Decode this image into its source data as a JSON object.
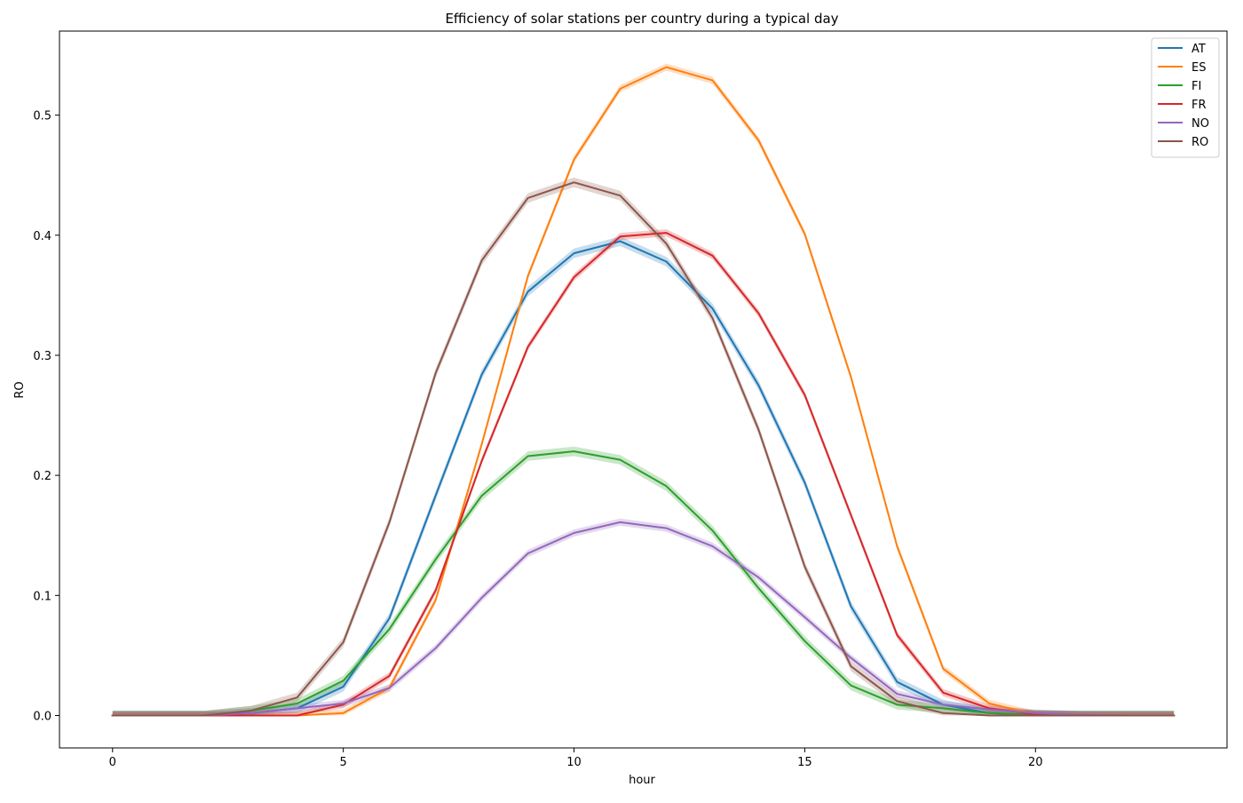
{
  "chart_data": {
    "type": "line",
    "title": "Efficiency of solar stations per country during a typical day",
    "xlabel": "hour",
    "ylabel": "RO",
    "xlim": [
      -1.15,
      24.15
    ],
    "ylim": [
      -0.027,
      0.57
    ],
    "xticks": [
      0,
      5,
      10,
      15,
      20
    ],
    "yticks": [
      0.0,
      0.1,
      0.2,
      0.3,
      0.4,
      0.5
    ],
    "ytick_labels": [
      "0.0",
      "0.1",
      "0.2",
      "0.3",
      "0.4",
      "0.5"
    ],
    "grid": false,
    "legend_position": "top-right",
    "x": [
      0,
      1,
      2,
      3,
      4,
      5,
      6,
      7,
      8,
      9,
      10,
      11,
      12,
      13,
      14,
      15,
      16,
      17,
      18,
      19,
      20,
      21,
      22,
      23
    ],
    "series": [
      {
        "name": "AT",
        "color": "#1f77b4",
        "band": 0.004,
        "values": [
          0,
          0,
          0,
          0.002,
          0.006,
          0.024,
          0.081,
          0.183,
          0.284,
          0.353,
          0.385,
          0.395,
          0.378,
          0.339,
          0.275,
          0.194,
          0.091,
          0.028,
          0.009,
          0.002,
          0.0005,
          0,
          0,
          0
        ]
      },
      {
        "name": "ES",
        "color": "#ff7f0e",
        "band": 0.003,
        "values": [
          0,
          0,
          0,
          0,
          0,
          0.002,
          0.023,
          0.096,
          0.226,
          0.366,
          0.463,
          0.522,
          0.54,
          0.529,
          0.479,
          0.401,
          0.282,
          0.141,
          0.039,
          0.01,
          0.001,
          0,
          0,
          0
        ]
      },
      {
        "name": "FI",
        "color": "#2ca02c",
        "band": 0.004,
        "values": [
          0,
          0,
          0,
          0.004,
          0.01,
          0.029,
          0.072,
          0.13,
          0.183,
          0.216,
          0.22,
          0.213,
          0.191,
          0.154,
          0.106,
          0.062,
          0.025,
          0.009,
          0.006,
          0.002,
          0.0005,
          0,
          0,
          0
        ]
      },
      {
        "name": "FR",
        "color": "#d62728",
        "band": 0.003,
        "values": [
          0,
          0,
          0,
          0,
          0,
          0.009,
          0.033,
          0.104,
          0.212,
          0.307,
          0.365,
          0.399,
          0.402,
          0.383,
          0.335,
          0.267,
          0.167,
          0.067,
          0.019,
          0.006,
          0.001,
          0,
          0,
          0
        ]
      },
      {
        "name": "NO",
        "color": "#9467bd",
        "band": 0.003,
        "values": [
          0,
          0,
          0,
          0.002,
          0.006,
          0.01,
          0.023,
          0.056,
          0.098,
          0.135,
          0.152,
          0.161,
          0.156,
          0.141,
          0.115,
          0.082,
          0.048,
          0.018,
          0.009,
          0.005,
          0.002,
          0.0005,
          0,
          0
        ]
      },
      {
        "name": "RO",
        "color": "#8c564b",
        "band": 0.004,
        "values": [
          0,
          0,
          0,
          0.004,
          0.015,
          0.061,
          0.161,
          0.285,
          0.379,
          0.431,
          0.444,
          0.433,
          0.393,
          0.331,
          0.238,
          0.124,
          0.041,
          0.012,
          0.002,
          0,
          0,
          0,
          0,
          0
        ]
      }
    ]
  }
}
